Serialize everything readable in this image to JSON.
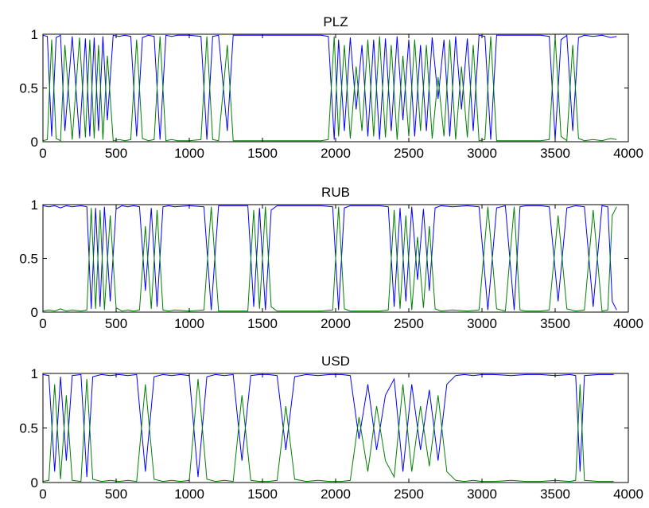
{
  "chart_data": [
    {
      "type": "line",
      "title": "PLZ",
      "xlabel": "",
      "ylabel": "",
      "xlim": [
        0,
        4000
      ],
      "ylim": [
        0,
        1
      ],
      "xticks": [
        0,
        500,
        1000,
        1500,
        2000,
        2500,
        3000,
        3500,
        4000
      ],
      "yticks": [
        0,
        0.5,
        1
      ],
      "xtick_labels": [
        "0",
        "500",
        "1000",
        "1500",
        "2000",
        "2500",
        "3000",
        "3500",
        "4000"
      ],
      "ytick_labels": [
        "0",
        "0.5",
        "1"
      ],
      "grid": false,
      "series": [
        {
          "color": "#0000ff",
          "x": [
            0,
            30,
            60,
            90,
            120,
            150,
            200,
            250,
            290,
            320,
            350,
            380,
            410,
            440,
            480,
            520,
            560,
            600,
            640,
            680,
            720,
            760,
            800,
            840,
            880,
            920,
            1000,
            1080,
            1120,
            1160,
            1200,
            1260,
            1300,
            1400,
            1500,
            1600,
            1700,
            1800,
            1900,
            1950,
            1990,
            2020,
            2060,
            2100,
            2140,
            2180,
            2220,
            2260,
            2300,
            2340,
            2380,
            2420,
            2460,
            2500,
            2540,
            2580,
            2620,
            2660,
            2700,
            2740,
            2780,
            2820,
            2860,
            2900,
            2940,
            2980,
            3020,
            3060,
            3100,
            3150,
            3200,
            3300,
            3400,
            3460,
            3500,
            3540,
            3580,
            3620,
            3660,
            3700,
            3760,
            3820,
            3880,
            3920
          ],
          "values": [
            0.99,
            0.98,
            0.05,
            0.97,
            0.99,
            0.1,
            0.98,
            0.03,
            0.96,
            0.05,
            0.97,
            0.1,
            0.98,
            0.2,
            0.99,
            0.98,
            0.99,
            0.98,
            0.05,
            0.97,
            0.99,
            0.98,
            0.02,
            0.99,
            0.98,
            0.99,
            0.99,
            0.98,
            0.02,
            0.98,
            0.99,
            0.1,
            0.99,
            0.99,
            0.99,
            0.99,
            0.99,
            0.99,
            0.99,
            0.98,
            0.02,
            0.95,
            0.1,
            0.97,
            0.3,
            0.9,
            0.05,
            0.95,
            0.02,
            0.96,
            0.1,
            0.98,
            0.2,
            0.95,
            0.05,
            0.9,
            0.1,
            0.97,
            0.4,
            0.95,
            0.05,
            0.98,
            0.3,
            0.96,
            0.1,
            0.99,
            0.98,
            0.02,
            0.99,
            0.99,
            0.99,
            0.99,
            0.99,
            0.98,
            0.02,
            0.95,
            0.99,
            0.1,
            0.97,
            0.99,
            0.98,
            0.99,
            0.97,
            0.98
          ]
        },
        {
          "color": "#008000",
          "x": [
            0,
            30,
            60,
            90,
            120,
            150,
            200,
            250,
            290,
            320,
            350,
            380,
            410,
            440,
            480,
            520,
            560,
            600,
            640,
            680,
            720,
            760,
            800,
            840,
            880,
            920,
            1000,
            1080,
            1120,
            1160,
            1200,
            1260,
            1300,
            1400,
            1500,
            1600,
            1700,
            1800,
            1900,
            1950,
            1990,
            2020,
            2060,
            2100,
            2140,
            2180,
            2220,
            2260,
            2300,
            2340,
            2380,
            2420,
            2460,
            2500,
            2540,
            2580,
            2620,
            2660,
            2700,
            2740,
            2780,
            2820,
            2860,
            2900,
            2940,
            2980,
            3020,
            3060,
            3100,
            3150,
            3200,
            3300,
            3400,
            3460,
            3500,
            3540,
            3580,
            3620,
            3660,
            3700,
            3760,
            3820,
            3880,
            3920
          ],
          "values": [
            0.01,
            0.02,
            0.95,
            0.03,
            0.01,
            0.9,
            0.02,
            0.97,
            0.04,
            0.95,
            0.03,
            0.9,
            0.02,
            0.8,
            0.01,
            0.02,
            0.01,
            0.02,
            0.95,
            0.03,
            0.01,
            0.02,
            0.98,
            0.01,
            0.02,
            0.01,
            0.01,
            0.02,
            0.98,
            0.02,
            0.01,
            0.9,
            0.01,
            0.01,
            0.01,
            0.01,
            0.01,
            0.01,
            0.01,
            0.02,
            0.98,
            0.05,
            0.9,
            0.03,
            0.7,
            0.1,
            0.95,
            0.05,
            0.98,
            0.04,
            0.9,
            0.02,
            0.8,
            0.05,
            0.95,
            0.1,
            0.9,
            0.03,
            0.6,
            0.05,
            0.95,
            0.02,
            0.7,
            0.04,
            0.9,
            0.01,
            0.02,
            0.98,
            0.01,
            0.01,
            0.01,
            0.01,
            0.01,
            0.02,
            0.98,
            0.05,
            0.01,
            0.9,
            0.03,
            0.01,
            0.02,
            0.01,
            0.03,
            0.02
          ]
        }
      ]
    },
    {
      "type": "line",
      "title": "RUB",
      "xlabel": "",
      "ylabel": "",
      "xlim": [
        0,
        4000
      ],
      "ylim": [
        0,
        1
      ],
      "xticks": [
        0,
        500,
        1000,
        1500,
        2000,
        2500,
        3000,
        3500,
        4000
      ],
      "yticks": [
        0,
        0.5,
        1
      ],
      "xtick_labels": [
        "0",
        "500",
        "1000",
        "1500",
        "2000",
        "2500",
        "3000",
        "3500",
        "4000"
      ],
      "ytick_labels": [
        "0",
        "0.5",
        "1"
      ],
      "grid": false,
      "series": [
        {
          "color": "#0000ff",
          "x": [
            0,
            40,
            80,
            120,
            160,
            200,
            260,
            300,
            330,
            360,
            390,
            420,
            460,
            500,
            540,
            580,
            620,
            660,
            700,
            740,
            780,
            820,
            860,
            900,
            1000,
            1100,
            1150,
            1200,
            1300,
            1400,
            1440,
            1480,
            1520,
            1560,
            1600,
            1700,
            1800,
            1900,
            1980,
            2020,
            2060,
            2100,
            2200,
            2300,
            2360,
            2400,
            2440,
            2480,
            2520,
            2560,
            2600,
            2640,
            2680,
            2720,
            2800,
            2900,
            2980,
            3040,
            3100,
            3160,
            3220,
            3260,
            3300,
            3400,
            3460,
            3520,
            3580,
            3640,
            3700,
            3760,
            3820,
            3860,
            3890,
            3920
          ],
          "values": [
            0.99,
            0.98,
            0.99,
            0.97,
            0.99,
            0.98,
            0.99,
            0.98,
            0.03,
            0.97,
            0.05,
            0.98,
            0.1,
            0.96,
            0.99,
            0.98,
            0.99,
            0.98,
            0.2,
            0.97,
            0.05,
            0.98,
            0.99,
            0.98,
            0.99,
            0.98,
            0.02,
            0.99,
            0.99,
            0.99,
            0.05,
            0.97,
            0.02,
            0.95,
            0.99,
            0.99,
            0.99,
            0.99,
            0.98,
            0.02,
            0.97,
            0.99,
            0.99,
            0.99,
            0.98,
            0.05,
            0.97,
            0.1,
            0.98,
            0.3,
            0.96,
            0.2,
            0.97,
            0.99,
            0.98,
            0.99,
            0.98,
            0.02,
            0.97,
            0.99,
            0.02,
            0.98,
            0.99,
            0.99,
            0.98,
            0.1,
            0.97,
            0.99,
            0.98,
            0.05,
            0.99,
            0.98,
            0.1,
            0.02
          ]
        },
        {
          "color": "#008000",
          "x": [
            0,
            40,
            80,
            120,
            160,
            200,
            260,
            300,
            330,
            360,
            390,
            420,
            460,
            500,
            540,
            580,
            620,
            660,
            700,
            740,
            780,
            820,
            860,
            900,
            1000,
            1100,
            1150,
            1200,
            1300,
            1400,
            1440,
            1480,
            1520,
            1560,
            1600,
            1700,
            1800,
            1900,
            1980,
            2020,
            2060,
            2100,
            2200,
            2300,
            2360,
            2400,
            2440,
            2480,
            2520,
            2560,
            2600,
            2640,
            2680,
            2720,
            2800,
            2900,
            2980,
            3040,
            3100,
            3160,
            3220,
            3260,
            3300,
            3400,
            3460,
            3520,
            3580,
            3640,
            3700,
            3760,
            3820,
            3860,
            3890,
            3920
          ],
          "values": [
            0.01,
            0.02,
            0.01,
            0.03,
            0.01,
            0.02,
            0.01,
            0.02,
            0.97,
            0.03,
            0.95,
            0.02,
            0.9,
            0.04,
            0.01,
            0.02,
            0.01,
            0.02,
            0.8,
            0.03,
            0.95,
            0.02,
            0.01,
            0.02,
            0.01,
            0.02,
            0.98,
            0.01,
            0.01,
            0.01,
            0.95,
            0.03,
            0.98,
            0.05,
            0.01,
            0.01,
            0.01,
            0.01,
            0.02,
            0.98,
            0.03,
            0.01,
            0.01,
            0.01,
            0.02,
            0.95,
            0.03,
            0.9,
            0.02,
            0.7,
            0.04,
            0.8,
            0.03,
            0.01,
            0.02,
            0.01,
            0.02,
            0.98,
            0.03,
            0.01,
            0.98,
            0.02,
            0.01,
            0.01,
            0.02,
            0.9,
            0.03,
            0.01,
            0.02,
            0.95,
            0.01,
            0.02,
            0.9,
            0.98
          ]
        }
      ]
    },
    {
      "type": "line",
      "title": "USD",
      "xlabel": "",
      "ylabel": "",
      "xlim": [
        0,
        4000
      ],
      "ylim": [
        0,
        1
      ],
      "xticks": [
        0,
        500,
        1000,
        1500,
        2000,
        2500,
        3000,
        3500,
        4000
      ],
      "yticks": [
        0,
        0.5,
        1
      ],
      "xtick_labels": [
        "0",
        "500",
        "1000",
        "1500",
        "2000",
        "2500",
        "3000",
        "3500",
        "4000"
      ],
      "ytick_labels": [
        "0",
        "0.5",
        "1"
      ],
      "grid": false,
      "series": [
        {
          "color": "#0000ff",
          "x": [
            0,
            40,
            80,
            120,
            160,
            200,
            260,
            300,
            340,
            400,
            460,
            520,
            580,
            640,
            700,
            760,
            820,
            880,
            940,
            1000,
            1060,
            1120,
            1180,
            1240,
            1300,
            1360,
            1420,
            1480,
            1540,
            1600,
            1660,
            1720,
            1800,
            1880,
            1960,
            2040,
            2100,
            2160,
            2220,
            2280,
            2340,
            2400,
            2460,
            2520,
            2580,
            2640,
            2700,
            2760,
            2820,
            2880,
            2940,
            3000,
            3080,
            3200,
            3300,
            3400,
            3500,
            3600,
            3640,
            3670,
            3700,
            3800,
            3900
          ],
          "values": [
            0.99,
            0.98,
            0.1,
            0.97,
            0.2,
            0.98,
            0.99,
            0.05,
            0.97,
            0.99,
            0.98,
            0.99,
            0.98,
            0.99,
            0.1,
            0.97,
            0.99,
            0.98,
            0.99,
            0.98,
            0.05,
            0.97,
            0.99,
            0.98,
            0.99,
            0.2,
            0.98,
            0.99,
            0.99,
            0.98,
            0.3,
            0.97,
            0.99,
            0.98,
            0.99,
            0.99,
            0.98,
            0.4,
            0.9,
            0.3,
            0.8,
            0.95,
            0.1,
            0.9,
            0.3,
            0.85,
            0.2,
            0.9,
            0.98,
            0.99,
            0.98,
            0.99,
            0.99,
            0.98,
            0.99,
            0.99,
            0.98,
            0.99,
            0.98,
            0.1,
            0.98,
            0.99,
            0.99
          ]
        },
        {
          "color": "#008000",
          "x": [
            0,
            40,
            80,
            120,
            160,
            200,
            260,
            300,
            340,
            400,
            460,
            520,
            580,
            640,
            700,
            760,
            820,
            880,
            940,
            1000,
            1060,
            1120,
            1180,
            1240,
            1300,
            1360,
            1420,
            1480,
            1540,
            1600,
            1660,
            1720,
            1800,
            1880,
            1960,
            2040,
            2100,
            2160,
            2220,
            2280,
            2340,
            2400,
            2460,
            2520,
            2580,
            2640,
            2700,
            2760,
            2820,
            2880,
            2940,
            3000,
            3080,
            3200,
            3300,
            3400,
            3500,
            3600,
            3640,
            3670,
            3700,
            3800,
            3900
          ],
          "values": [
            0.01,
            0.02,
            0.9,
            0.03,
            0.8,
            0.02,
            0.01,
            0.95,
            0.03,
            0.01,
            0.02,
            0.01,
            0.02,
            0.01,
            0.9,
            0.03,
            0.01,
            0.02,
            0.01,
            0.02,
            0.95,
            0.03,
            0.01,
            0.02,
            0.01,
            0.8,
            0.02,
            0.01,
            0.01,
            0.02,
            0.7,
            0.03,
            0.01,
            0.02,
            0.01,
            0.01,
            0.02,
            0.6,
            0.1,
            0.7,
            0.2,
            0.05,
            0.9,
            0.1,
            0.7,
            0.15,
            0.8,
            0.1,
            0.02,
            0.01,
            0.02,
            0.01,
            0.01,
            0.02,
            0.01,
            0.01,
            0.02,
            0.01,
            0.02,
            0.9,
            0.02,
            0.01,
            0.01
          ]
        }
      ]
    }
  ]
}
